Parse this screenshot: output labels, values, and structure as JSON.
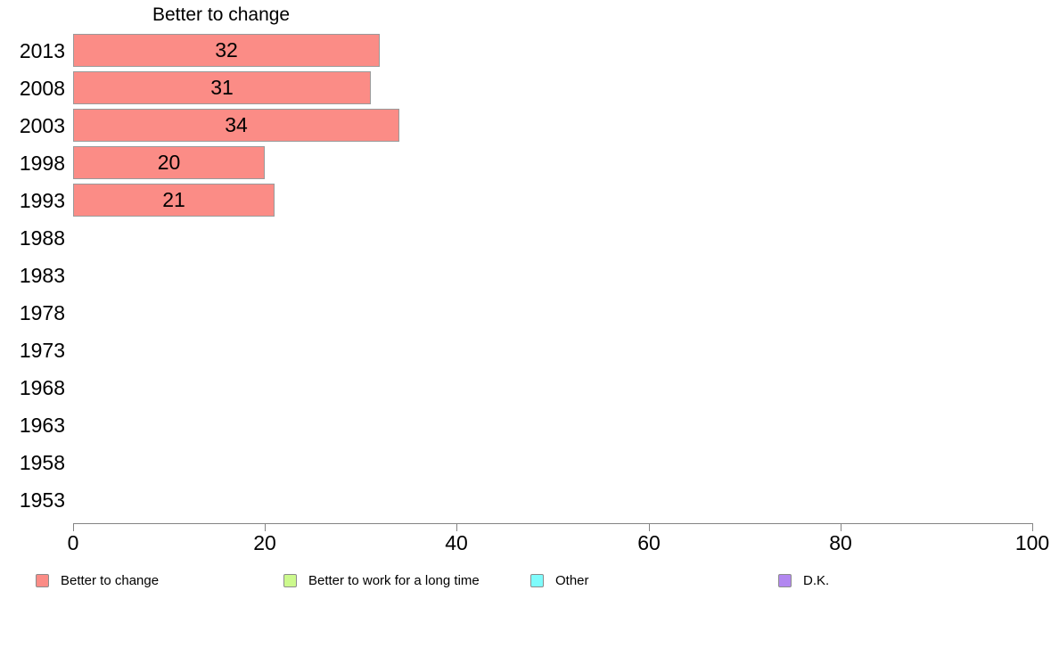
{
  "page": {
    "background": "#ffffff"
  },
  "chart_data": {
    "type": "bar",
    "orientation": "horizontal",
    "title": "Better to change",
    "categories": [
      "2013",
      "2008",
      "2003",
      "1998",
      "1993",
      "1988",
      "1983",
      "1978",
      "1973",
      "1968",
      "1963",
      "1958",
      "1953"
    ],
    "series": [
      {
        "name": "Better to change",
        "color": "#FB8C86",
        "values": [
          32,
          31,
          34,
          20,
          21,
          null,
          null,
          null,
          null,
          null,
          null,
          null,
          null
        ]
      }
    ],
    "xlabel": "",
    "ylabel": "",
    "xlim": [
      0,
      100
    ],
    "x_ticks": [
      0,
      20,
      40,
      60,
      80,
      100
    ],
    "grid": false,
    "bar_labels_shown": true,
    "axis_color": "#848484",
    "bar_border_color": "#9a9a9a",
    "legend_position": "bottom",
    "legend": [
      {
        "label": "Better to change",
        "color": "#FB8C86"
      },
      {
        "label": "Better to work for a long time",
        "color": "#CCF98D"
      },
      {
        "label": "Other",
        "color": "#7FFCFC"
      },
      {
        "label": "D.K.",
        "color": "#B287F0"
      }
    ]
  }
}
